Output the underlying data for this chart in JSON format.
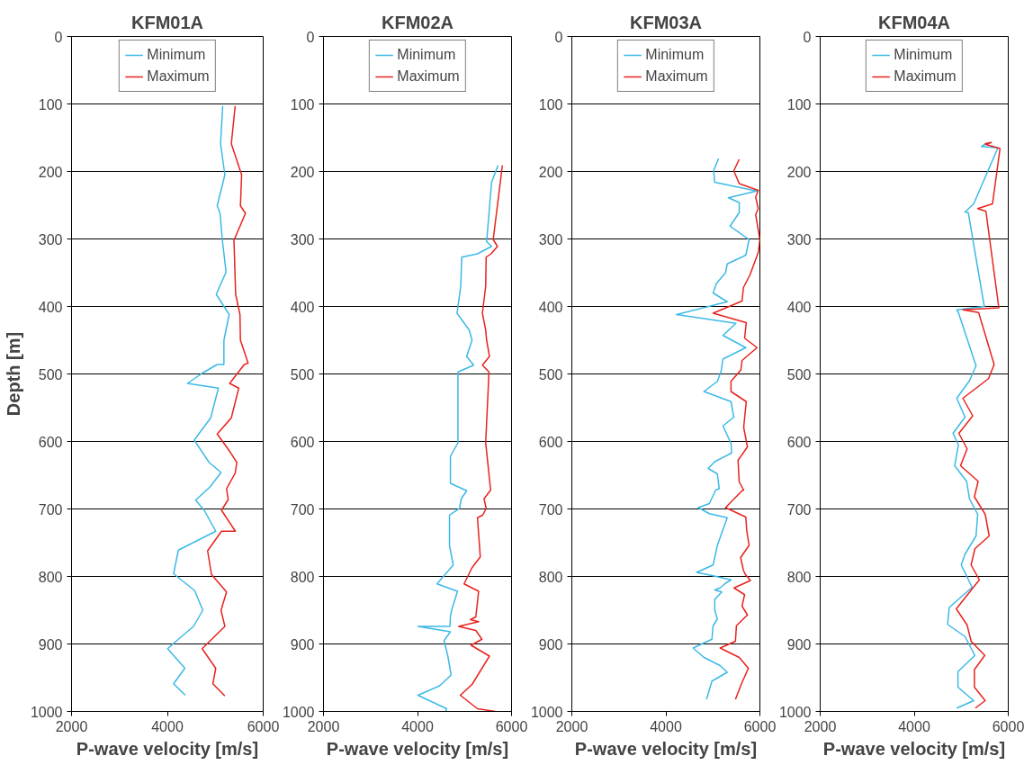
{
  "chart_data": [
    {
      "type": "line",
      "title": "KFM01A",
      "xlabel": "P-wave velocity [m/s]",
      "ylabel": "Depth [m]",
      "xlim": [
        2000,
        6000
      ],
      "xticks": [
        2000,
        4000,
        6000
      ],
      "ylim": [
        1000,
        0
      ],
      "yticks": [
        0,
        100,
        200,
        300,
        400,
        500,
        600,
        700,
        800,
        900,
        1000
      ],
      "grid": "y",
      "legend": "top",
      "series": [
        {
          "name": "Minimum",
          "color": "#3cb9e6",
          "x": [
            5155,
            5110,
            5200,
            5040,
            5100,
            5145,
            5225,
            5020,
            5290,
            5180,
            5180,
            5040,
            4725,
            4420,
            5065,
            4905,
            4560,
            4870,
            5120,
            4895,
            4590,
            4770,
            5010,
            4230,
            4130,
            4570,
            4740,
            4545,
            4165,
            4005,
            4365,
            4130,
            4375
          ],
          "values": [
            103,
            159,
            205,
            251,
            262,
            300,
            349,
            382,
            412,
            450,
            486,
            486,
            499,
            514,
            521,
            565,
            598,
            631,
            646,
            667,
            687,
            702,
            733,
            761,
            796,
            821,
            850,
            874,
            897,
            907,
            936,
            959,
            976
          ]
        },
        {
          "name": "Maximum",
          "color": "#e8231e",
          "x": [
            5415,
            5335,
            5550,
            5525,
            5630,
            5390,
            5425,
            5515,
            5525,
            5685,
            5605,
            5300,
            5490,
            5335,
            5040,
            5265,
            5450,
            5415,
            5235,
            5270,
            5130,
            5420,
            5130,
            4840,
            4920,
            5235,
            5120,
            5200,
            4725,
            5010,
            4950,
            5200
          ],
          "values": [
            103,
            159,
            205,
            251,
            262,
            302,
            382,
            412,
            450,
            484,
            486,
            514,
            521,
            565,
            589,
            611,
            631,
            647,
            670,
            686,
            702,
            733,
            733,
            762,
            797,
            823,
            850,
            874,
            907,
            936,
            959,
            977
          ]
        }
      ]
    },
    {
      "type": "line",
      "title": "KFM02A",
      "xlabel": "P-wave velocity [m/s]",
      "xlim": [
        2000,
        6000
      ],
      "xticks": [
        2000,
        4000,
        6000
      ],
      "ylim": [
        1000,
        0
      ],
      "yticks": [
        0,
        100,
        200,
        300,
        400,
        500,
        600,
        700,
        800,
        900,
        1000
      ],
      "grid": "y",
      "legend": "top",
      "series": [
        {
          "name": "Minimum",
          "color": "#3cb9e6",
          "x": [
            5713,
            5575,
            5470,
            5575,
            5275,
            4940,
            4920,
            4840,
            5100,
            5160,
            5045,
            5195,
            4860,
            4860,
            4700,
            4700,
            5045,
            4930,
            4895,
            4680,
            4680,
            4760,
            4415,
            4850,
            4725,
            4700,
            4690,
            4010,
            4700,
            4565,
            4645,
            4715,
            4470,
            4010,
            4620,
            4600
          ],
          "values": [
            191,
            216,
            304,
            311,
            322,
            327,
            370,
            410,
            435,
            450,
            474,
            487,
            497,
            602,
            622,
            662,
            673,
            685,
            699,
            709,
            754,
            783,
            811,
            822,
            850,
            860,
            874,
            874,
            882,
            895,
            918,
            946,
            962,
            976,
            996,
            1000
          ]
        },
        {
          "name": "Maximum",
          "color": "#e8231e",
          "x": [
            5805,
            5610,
            5700,
            5565,
            5460,
            5450,
            5380,
            5450,
            5470,
            5530,
            5380,
            5520,
            5450,
            5555,
            5415,
            5460,
            5390,
            5275,
            5335,
            5160,
            4990,
            5300,
            5240,
            5125,
            5300,
            4875,
            5240,
            5370,
            5140,
            5530,
            5160,
            4910,
            5275,
            5655
          ],
          "values": [
            191,
            301,
            311,
            322,
            327,
            370,
            410,
            435,
            450,
            474,
            487,
            497,
            602,
            672,
            685,
            699,
            709,
            713,
            771,
            787,
            811,
            822,
            860,
            864,
            867,
            874,
            880,
            893,
            902,
            918,
            960,
            976,
            996,
            1000
          ]
        }
      ]
    },
    {
      "type": "line",
      "title": "KFM03A",
      "xlabel": "P-wave velocity [m/s]",
      "xlim": [
        2000,
        6000
      ],
      "xticks": [
        2000,
        4000,
        6000
      ],
      "ylim": [
        1000,
        0
      ],
      "yticks": [
        0,
        100,
        200,
        300,
        400,
        500,
        600,
        700,
        800,
        900,
        1000
      ],
      "grid": "y",
      "legend": "top",
      "series": [
        {
          "name": "Minimum",
          "color": "#3cb9e6",
          "x": [
            5120,
            5015,
            5040,
            5930,
            5330,
            5560,
            5560,
            5365,
            5770,
            5700,
            5305,
            5270,
            5075,
            5005,
            5305,
            4225,
            5490,
            5215,
            5700,
            5215,
            5175,
            5095,
            4810,
            5385,
            5445,
            5215,
            5385,
            5400,
            5040,
            4900,
            5095,
            5135,
            5060,
            4925,
            4690,
            4925,
            5305,
            5095,
            5005,
            4655,
            5005,
            5385,
            5270,
            5155,
            5040,
            5190,
            5040,
            5040,
            5095,
            5005,
            4980,
            4580,
            4810,
            5155,
            5305,
            4980,
            4865
          ],
          "values": [
            181,
            199,
            216,
            229,
            239,
            246,
            261,
            281,
            301,
            324,
            337,
            350,
            366,
            380,
            393,
            412,
            425,
            443,
            461,
            478,
            496,
            511,
            526,
            541,
            564,
            577,
            603,
            617,
            630,
            640,
            648,
            670,
            672,
            692,
            698,
            707,
            713,
            754,
            783,
            794,
            799,
            805,
            810,
            817,
            820,
            823,
            834,
            850,
            863,
            873,
            893,
            906,
            920,
            932,
            942,
            955,
            982
          ]
        },
        {
          "name": "Maximum",
          "color": "#e8231e",
          "x": [
            5560,
            5445,
            5560,
            5965,
            5910,
            5965,
            5910,
            6000,
            5965,
            5790,
            5650,
            5620,
            5005,
            5710,
            5675,
            5940,
            5620,
            5595,
            5385,
            5385,
            5710,
            5655,
            5735,
            5535,
            5560,
            5655,
            5620,
            5270,
            5700,
            5720,
            5770,
            5590,
            5650,
            5690,
            5800,
            5450,
            5675,
            5620,
            5735,
            5500,
            5480,
            5155,
            5560,
            5755,
            5620,
            5480
          ],
          "values": [
            182,
            199,
            218,
            228,
            238,
            255,
            264,
            301,
            320,
            353,
            372,
            392,
            410,
            424,
            447,
            461,
            480,
            494,
            511,
            526,
            541,
            579,
            608,
            628,
            660,
            672,
            673,
            698,
            712,
            732,
            754,
            772,
            791,
            797,
            806,
            817,
            827,
            844,
            857,
            873,
            896,
            906,
            920,
            936,
            957,
            982
          ]
        }
      ]
    },
    {
      "type": "line",
      "title": "KFM04A",
      "xlabel": "P-wave velocity [m/s]",
      "xlim": [
        2000,
        6000
      ],
      "xticks": [
        2000,
        4000,
        6000
      ],
      "ylim": [
        1000,
        0
      ],
      "yticks": [
        0,
        100,
        200,
        300,
        400,
        500,
        600,
        700,
        800,
        900,
        1000
      ],
      "grid": "y",
      "legend": "top",
      "series": [
        {
          "name": "Minimum",
          "color": "#3cb9e6",
          "x": [
            5525,
            5430,
            5780,
            5265,
            5080,
            5150,
            5490,
            4905,
            4940,
            5315,
            5175,
            4905,
            5080,
            4825,
            4940,
            4860,
            5115,
            5175,
            5350,
            5315,
            5080,
            5000,
            5230,
            4745,
            4710,
            5080,
            5290,
            4930,
            4930,
            5265,
            4905
          ],
          "values": [
            159,
            163,
            165,
            248,
            260,
            261,
            400,
            405,
            409,
            488,
            510,
            536,
            564,
            588,
            605,
            636,
            659,
            685,
            708,
            740,
            767,
            783,
            816,
            846,
            871,
            889,
            917,
            941,
            964,
            984,
            995
          ]
        },
        {
          "name": "Maximum",
          "color": "#e8231e",
          "x": [
            5500,
            5640,
            5525,
            5825,
            5665,
            5350,
            5525,
            5800,
            5035,
            5370,
            5700,
            5580,
            5035,
            5245,
            4950,
            5125,
            4985,
            5360,
            5280,
            5510,
            5595,
            5290,
            5210,
            5385,
            4895,
            5125,
            5210,
            5500,
            5280,
            5280,
            5510,
            5300
          ],
          "values": [
            159,
            157,
            160,
            166,
            248,
            255,
            259,
            402,
            405,
            409,
            486,
            507,
            536,
            562,
            588,
            611,
            636,
            659,
            682,
            708,
            740,
            759,
            783,
            805,
            848,
            872,
            896,
            917,
            938,
            964,
            984,
            995
          ]
        }
      ]
    }
  ]
}
